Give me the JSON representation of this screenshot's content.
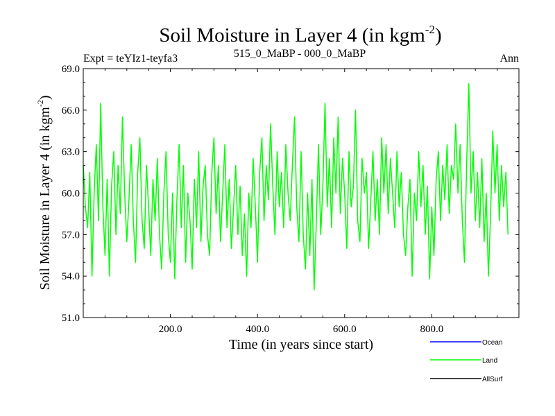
{
  "chart_data": {
    "type": "line",
    "title": {
      "main": "Soil Moisture in Layer 4 (in kgm",
      "exp": "-2",
      "close": ")"
    },
    "subtitle_left": "Expt = teYIz1-teyfa3",
    "subtitle_center": "515_0_MaBP - 000_0_MaBP",
    "subtitle_right": "Ann",
    "xlabel": "Time (in years since start)",
    "ylabel": {
      "main": "Soil Moisture in Layer 4 (in kgm",
      "exp": "-2",
      "close": ")"
    },
    "xlim": [
      0,
      1000
    ],
    "ylim": [
      51,
      69
    ],
    "xticks": [
      200,
      400,
      600,
      800
    ],
    "xtick_labels": [
      "200.0",
      "400.0",
      "600.0",
      "800.0"
    ],
    "yticks": [
      51,
      54,
      57,
      60,
      63,
      66,
      69
    ],
    "ytick_labels": [
      "51.0",
      "54.0",
      "57.0",
      "60.0",
      "63.0",
      "66.0",
      "69.0"
    ],
    "legend_position": "bottom-right",
    "series": [
      {
        "name": "Ocean",
        "color": "#0000ff",
        "values": []
      },
      {
        "name": "Land",
        "color": "#00ff00",
        "x_start": 0,
        "x_step": 5,
        "values": [
          62.0,
          59.0,
          57.5,
          61.5,
          54.0,
          60.0,
          63.5,
          58.0,
          66.5,
          59.0,
          55.5,
          61.0,
          54.0,
          60.5,
          63.0,
          57.0,
          62.0,
          58.5,
          65.5,
          60.0,
          56.5,
          59.5,
          63.5,
          58.0,
          55.0,
          61.5,
          64.0,
          58.0,
          56.0,
          62.0,
          59.0,
          55.5,
          61.0,
          58.0,
          62.5,
          57.0,
          54.5,
          60.0,
          63.0,
          57.0,
          55.0,
          60.0,
          53.8,
          59.5,
          63.5,
          57.5,
          62.0,
          55.0,
          60.0,
          58.0,
          54.5,
          61.0,
          57.5,
          63.0,
          56.5,
          60.5,
          62.0,
          57.0,
          55.5,
          61.5,
          64.0,
          58.5,
          62.0,
          56.5,
          60.0,
          63.5,
          57.5,
          61.0,
          56.0,
          59.0,
          62.0,
          57.0,
          60.5,
          55.5,
          58.5,
          54.0,
          60.0,
          57.5,
          62.5,
          59.0,
          55.0,
          61.5,
          64.0,
          58.0,
          62.0,
          59.5,
          65.0,
          60.5,
          57.0,
          63.0,
          59.0,
          61.5,
          57.5,
          63.5,
          60.0,
          58.0,
          62.0,
          65.5,
          59.0,
          56.5,
          63.0,
          57.0,
          54.5,
          60.0,
          55.5,
          61.0,
          53.0,
          58.0,
          63.5,
          57.0,
          60.5,
          66.5,
          59.0,
          62.5,
          57.5,
          64.0,
          60.0,
          65.5,
          58.5,
          62.5,
          60.0,
          56.0,
          63.0,
          59.0,
          60.5,
          66.0,
          58.0,
          56.5,
          62.5,
          60.0,
          61.5,
          56.0,
          59.5,
          63.0,
          58.0,
          61.0,
          57.0,
          64.0,
          60.0,
          63.5,
          58.5,
          62.5,
          60.0,
          57.5,
          63.0,
          59.0,
          61.5,
          57.0,
          55.5,
          59.0,
          61.0,
          54.0,
          60.0,
          58.0,
          63.0,
          59.0,
          62.0,
          57.0,
          60.5,
          53.8,
          59.0,
          55.5,
          61.0,
          63.0,
          58.0,
          62.0,
          59.5,
          63.5,
          58.5,
          62.0,
          61.0,
          65.0,
          60.0,
          63.5,
          58.0,
          55.0,
          62.0,
          67.9,
          60.0,
          63.0,
          58.0,
          61.5,
          57.5,
          62.5,
          56.5,
          60.0,
          54.0,
          58.5,
          64.5,
          60.0,
          63.5,
          58.0,
          62.0,
          59.0,
          61.5,
          57.0
        ]
      },
      {
        "name": "AllSurf",
        "color": "#000000",
        "values": []
      }
    ]
  }
}
